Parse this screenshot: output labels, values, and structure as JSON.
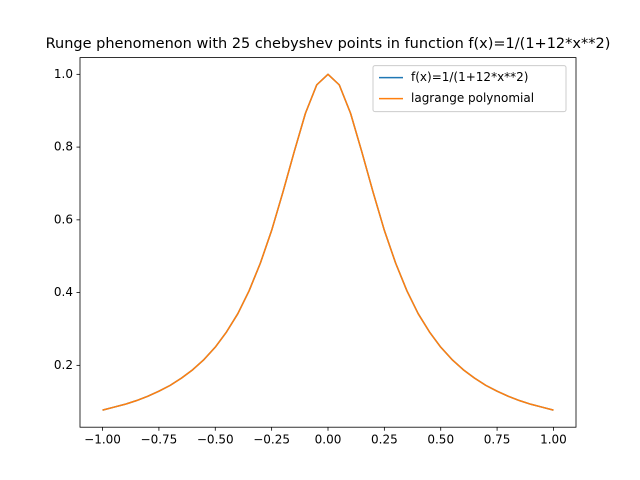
{
  "chart_data": {
    "type": "line",
    "title": "Runge phenomenon with 25 chebyshev points in function f(x)=1/(1+12*x**2)",
    "x": [
      -1,
      -0.95,
      -0.9,
      -0.85,
      -0.8,
      -0.75,
      -0.7,
      -0.65,
      -0.6,
      -0.55,
      -0.5,
      -0.45,
      -0.4,
      -0.35,
      -0.3,
      -0.25,
      -0.2,
      -0.15,
      -0.1,
      -0.05,
      0,
      0.05,
      0.1,
      0.15,
      0.2,
      0.25,
      0.3,
      0.35,
      0.4,
      0.45,
      0.5,
      0.55,
      0.6,
      0.65,
      0.7,
      0.75,
      0.8,
      0.85,
      0.9,
      0.95,
      1
    ],
    "series": [
      {
        "name": "f(x)=1/(1+12*x**2)",
        "color": "#1f77b4",
        "values": [
          0.077,
          0.085,
          0.093,
          0.103,
          0.115,
          0.129,
          0.145,
          0.165,
          0.188,
          0.216,
          0.25,
          0.292,
          0.342,
          0.405,
          0.481,
          0.571,
          0.676,
          0.787,
          0.893,
          0.971,
          1,
          0.971,
          0.893,
          0.787,
          0.676,
          0.571,
          0.481,
          0.405,
          0.342,
          0.292,
          0.25,
          0.216,
          0.188,
          0.165,
          0.145,
          0.129,
          0.115,
          0.103,
          0.093,
          0.085,
          0.077
        ]
      },
      {
        "name": "lagrange polynomial",
        "color": "#ff7f0e",
        "values": [
          0.077,
          0.085,
          0.093,
          0.103,
          0.115,
          0.129,
          0.145,
          0.165,
          0.188,
          0.216,
          0.25,
          0.292,
          0.342,
          0.405,
          0.481,
          0.571,
          0.676,
          0.787,
          0.893,
          0.971,
          1,
          0.971,
          0.893,
          0.787,
          0.676,
          0.571,
          0.481,
          0.405,
          0.342,
          0.292,
          0.25,
          0.216,
          0.188,
          0.165,
          0.145,
          0.129,
          0.115,
          0.103,
          0.093,
          0.085,
          0.077
        ]
      }
    ],
    "xlim": [
      -1.1,
      1.1
    ],
    "xticks": [
      {
        "value": -1,
        "label": "−1.00"
      },
      {
        "value": -0.75,
        "label": "−0.75"
      },
      {
        "value": -0.5,
        "label": "−0.50"
      },
      {
        "value": -0.25,
        "label": "−0.25"
      },
      {
        "value": 0,
        "label": "0.00"
      },
      {
        "value": 0.25,
        "label": "0.25"
      },
      {
        "value": 0.5,
        "label": "0.50"
      },
      {
        "value": 0.75,
        "label": "0.75"
      },
      {
        "value": 1,
        "label": "1.00"
      }
    ],
    "ylim": [
      0.03,
      1.046
    ],
    "yticks": [
      0.2,
      0.4,
      0.6,
      0.8,
      {
        "value": 1,
        "label": "1.0"
      }
    ],
    "grid": false,
    "legend": "upper right"
  }
}
